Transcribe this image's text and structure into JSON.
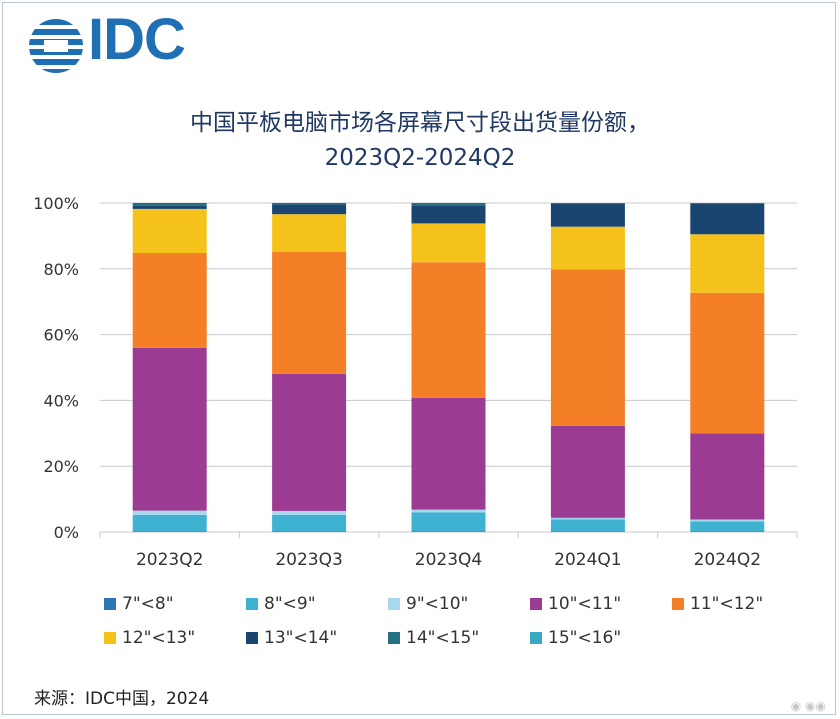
{
  "logo": {
    "text": "IDC",
    "color": "#1e6fb3"
  },
  "title_line1": "中国平板电脑市场各屏幕尺寸段出货量份额，",
  "title_line2": "2023Q2-2024Q2",
  "source": "来源：IDC中国，2024",
  "chart_data": {
    "type": "bar",
    "stacked": true,
    "title": "中国平板电脑市场各屏幕尺寸段出货量份额，2023Q2-2024Q2",
    "categories": [
      "2023Q2",
      "2023Q3",
      "2023Q4",
      "2024Q1",
      "2024Q2"
    ],
    "ylim": [
      0,
      100
    ],
    "yticks": [
      "0%",
      "20%",
      "40%",
      "60%",
      "80%",
      "100%"
    ],
    "grid": true,
    "legend_position": "bottom",
    "series": [
      {
        "name": "7\"<8\"",
        "color": "#2e75b6",
        "values": [
          0.2,
          0.2,
          0.2,
          0.2,
          0.2
        ]
      },
      {
        "name": "8\"<9\"",
        "color": "#3fb2d2",
        "values": [
          5.0,
          5.0,
          5.8,
          3.6,
          3.0
        ]
      },
      {
        "name": "9\"<10\"",
        "color": "#a8d8ee",
        "values": [
          1.3,
          1.2,
          0.8,
          0.5,
          0.6
        ]
      },
      {
        "name": "10\"<11\"",
        "color": "#9b3b92",
        "values": [
          49.5,
          41.7,
          34.0,
          28.0,
          26.2
        ]
      },
      {
        "name": "11\"<12\"",
        "color": "#f47f26",
        "values": [
          28.8,
          37.0,
          41.2,
          47.5,
          42.7
        ]
      },
      {
        "name": "12\"<13\"",
        "color": "#f5c21c",
        "values": [
          13.4,
          11.5,
          11.8,
          13.0,
          17.8
        ]
      },
      {
        "name": "13\"<14\"",
        "color": "#1a4570",
        "values": [
          1.0,
          3.0,
          5.5,
          7.0,
          9.3
        ]
      },
      {
        "name": "14\"<15\"",
        "color": "#237080",
        "values": [
          0.8,
          0.4,
          0.7,
          0.2,
          0.2
        ]
      },
      {
        "name": "15\"<16\"",
        "color": "#3aa9c3",
        "values": [
          0.0,
          0.0,
          0.0,
          0.0,
          0.0
        ]
      }
    ]
  }
}
